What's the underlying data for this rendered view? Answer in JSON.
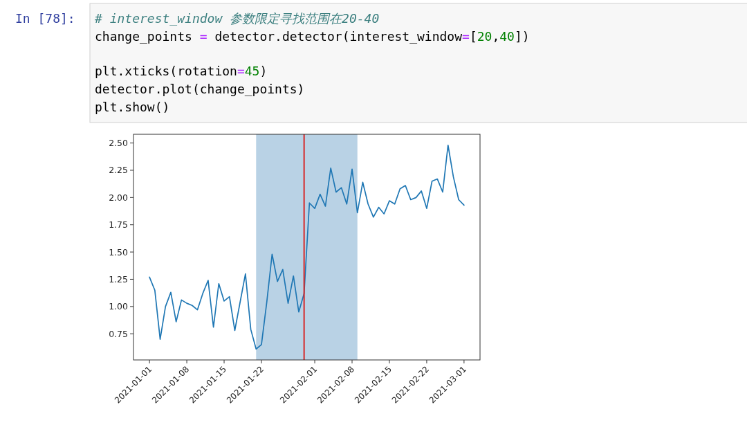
{
  "chart_data": {
    "type": "line",
    "annotations": [
      "In [78]:",
      "# interest_window 参数限定寻找范围在20-40",
      "change_points = detector.detector(interest_window=[20,40])",
      "plt.xticks(rotation=45)",
      "detector.plot(change_points)",
      "plt.show()"
    ],
    "x": [
      "2021-01-01",
      "2021-01-02",
      "2021-01-03",
      "2021-01-04",
      "2021-01-05",
      "2021-01-06",
      "2021-01-07",
      "2021-01-08",
      "2021-01-09",
      "2021-01-10",
      "2021-01-11",
      "2021-01-12",
      "2021-01-13",
      "2021-01-14",
      "2021-01-15",
      "2021-01-16",
      "2021-01-17",
      "2021-01-18",
      "2021-01-19",
      "2021-01-20",
      "2021-01-21",
      "2021-01-22",
      "2021-01-23",
      "2021-01-24",
      "2021-01-25",
      "2021-01-26",
      "2021-01-27",
      "2021-01-28",
      "2021-01-29",
      "2021-01-30",
      "2021-01-31",
      "2021-02-01",
      "2021-02-02",
      "2021-02-03",
      "2021-02-04",
      "2021-02-05",
      "2021-02-06",
      "2021-02-07",
      "2021-02-08",
      "2021-02-09",
      "2021-02-10",
      "2021-02-11",
      "2021-02-12",
      "2021-02-13",
      "2021-02-14",
      "2021-02-15",
      "2021-02-16",
      "2021-02-17",
      "2021-02-18",
      "2021-02-19",
      "2021-02-20",
      "2021-02-21",
      "2021-02-22",
      "2021-02-23",
      "2021-02-24",
      "2021-02-25",
      "2021-02-26",
      "2021-02-27",
      "2021-02-28",
      "2021-03-01"
    ],
    "series": [
      {
        "color": "#1f77b4",
        "values": [
          1.27,
          1.15,
          0.7,
          1.0,
          1.13,
          0.86,
          1.06,
          1.03,
          1.01,
          0.97,
          1.12,
          1.24,
          0.81,
          1.21,
          1.05,
          1.09,
          0.78,
          1.04,
          1.3,
          0.79,
          0.61,
          0.65,
          1.04,
          1.48,
          1.23,
          1.34,
          1.03,
          1.28,
          0.95,
          1.12,
          1.95,
          1.9,
          2.03,
          1.92,
          2.27,
          2.05,
          2.09,
          1.94,
          2.26,
          1.86,
          2.14,
          1.94,
          1.82,
          1.91,
          1.85,
          1.97,
          1.94,
          2.08,
          2.11,
          1.98,
          2.0,
          2.06,
          1.9,
          2.15,
          2.17,
          2.05,
          2.48,
          2.19,
          1.98,
          1.93
        ]
      }
    ],
    "xlim": [
      "2020-12-29",
      "2021-03-04"
    ],
    "xticks": [
      "2021-01-01",
      "2021-01-08",
      "2021-01-15",
      "2021-01-22",
      "2021-02-01",
      "2021-02-08",
      "2021-02-15",
      "2021-02-22",
      "2021-03-01"
    ],
    "ylim": [
      0.51,
      2.58
    ],
    "yticks": [
      0.75,
      {
        "value": 1.0,
        "label": "1.00"
      },
      1.25,
      {
        "value": 1.5,
        "label": "1.50"
      },
      1.75,
      {
        "value": 2.0,
        "label": "2.00"
      },
      2.25,
      {
        "value": 2.5,
        "label": "2.50"
      }
    ],
    "ref_lines": [
      {
        "axis": "x",
        "value": "2021-01-30",
        "color": "#d62728"
      }
    ],
    "bands": [
      {
        "axis": "x",
        "from": "2021-01-21",
        "to": "2021-02-09",
        "color": "#b9d2e5"
      }
    ]
  }
}
